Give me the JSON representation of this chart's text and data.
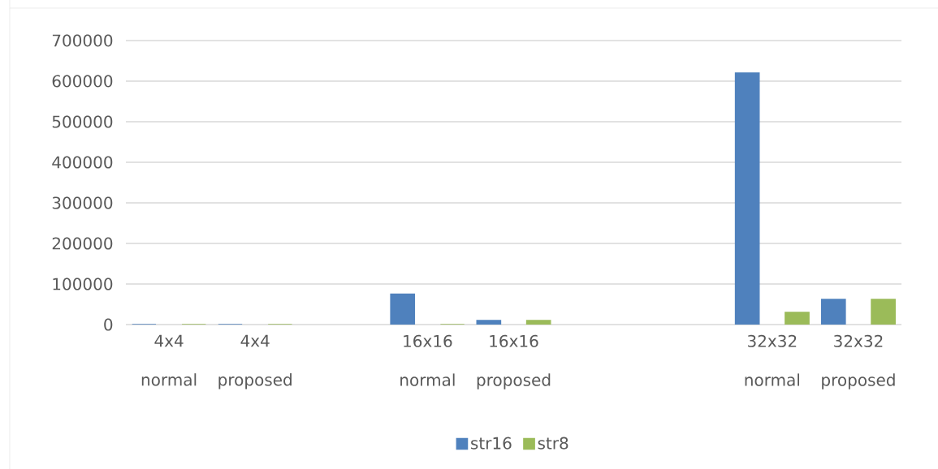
{
  "chart_data": {
    "type": "bar",
    "categories": [
      "4x4 normal",
      "4x4 proposed",
      null,
      "16x16 normal",
      "16x16 proposed",
      null,
      null,
      "32x32 normal",
      "32x32 proposed"
    ],
    "series": [
      {
        "name": "str16",
        "color": "#4f81bd",
        "values": [
          0,
          0,
          null,
          75000,
          10000,
          null,
          null,
          620000,
          62000
        ]
      },
      {
        "name": "str8",
        "color": "#9bbb59",
        "values": [
          0,
          0,
          null,
          0,
          10000,
          null,
          null,
          30000,
          62000
        ]
      }
    ],
    "ylim": [
      0,
      700000
    ],
    "yticks": [
      0,
      100000,
      200000,
      300000,
      400000,
      500000,
      600000,
      700000
    ],
    "grid": "y",
    "legend": "bottom"
  }
}
